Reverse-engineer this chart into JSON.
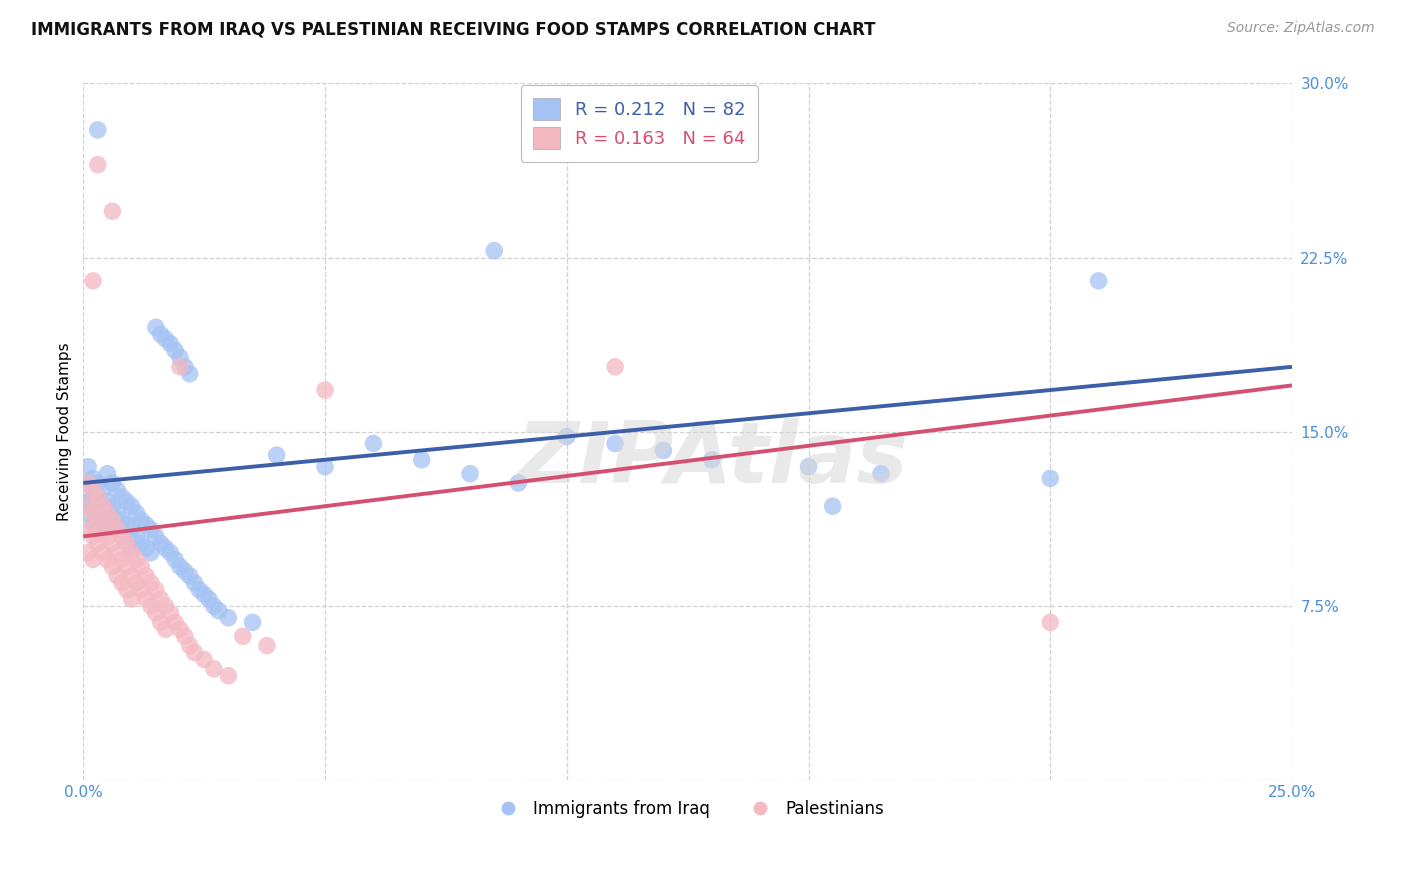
{
  "title": "IMMIGRANTS FROM IRAQ VS PALESTINIAN RECEIVING FOOD STAMPS CORRELATION CHART",
  "source": "Source: ZipAtlas.com",
  "ylabel": "Receiving Food Stamps",
  "xlim": [
    0.0,
    0.25
  ],
  "ylim": [
    0.0,
    0.3
  ],
  "xticks": [
    0.0,
    0.05,
    0.1,
    0.15,
    0.2,
    0.25
  ],
  "yticks": [
    0.0,
    0.075,
    0.15,
    0.225,
    0.3
  ],
  "blue_R": 0.212,
  "blue_N": 82,
  "pink_R": 0.163,
  "pink_N": 64,
  "blue_scatter_color": "#a4c2f4",
  "pink_scatter_color": "#f4b8c1",
  "blue_line_color": "#3d5fa8",
  "pink_line_color": "#d45070",
  "tick_label_color": "#4a90d9",
  "legend_label_blue": "Immigrants from Iraq",
  "legend_label_pink": "Palestinians",
  "blue_line_start_y": 0.128,
  "blue_line_end_y": 0.178,
  "pink_line_start_y": 0.105,
  "pink_line_end_y": 0.17,
  "watermark": "ZIPAtlas",
  "blue_points": [
    [
      0.001,
      0.128
    ],
    [
      0.001,
      0.135
    ],
    [
      0.001,
      0.12
    ],
    [
      0.001,
      0.115
    ],
    [
      0.002,
      0.13
    ],
    [
      0.002,
      0.125
    ],
    [
      0.002,
      0.118
    ],
    [
      0.002,
      0.11
    ],
    [
      0.002,
      0.122
    ],
    [
      0.003,
      0.128
    ],
    [
      0.003,
      0.115
    ],
    [
      0.003,
      0.122
    ],
    [
      0.003,
      0.108
    ],
    [
      0.003,
      0.28
    ],
    [
      0.004,
      0.125
    ],
    [
      0.004,
      0.118
    ],
    [
      0.004,
      0.112
    ],
    [
      0.005,
      0.132
    ],
    [
      0.005,
      0.12
    ],
    [
      0.005,
      0.115
    ],
    [
      0.006,
      0.128
    ],
    [
      0.006,
      0.118
    ],
    [
      0.006,
      0.11
    ],
    [
      0.007,
      0.125
    ],
    [
      0.007,
      0.115
    ],
    [
      0.007,
      0.108
    ],
    [
      0.008,
      0.122
    ],
    [
      0.008,
      0.112
    ],
    [
      0.008,
      0.105
    ],
    [
      0.009,
      0.12
    ],
    [
      0.009,
      0.11
    ],
    [
      0.01,
      0.118
    ],
    [
      0.01,
      0.108
    ],
    [
      0.01,
      0.1
    ],
    [
      0.011,
      0.115
    ],
    [
      0.011,
      0.105
    ],
    [
      0.012,
      0.112
    ],
    [
      0.012,
      0.102
    ],
    [
      0.013,
      0.11
    ],
    [
      0.013,
      0.1
    ],
    [
      0.014,
      0.108
    ],
    [
      0.014,
      0.098
    ],
    [
      0.015,
      0.105
    ],
    [
      0.015,
      0.195
    ],
    [
      0.016,
      0.102
    ],
    [
      0.016,
      0.192
    ],
    [
      0.017,
      0.1
    ],
    [
      0.017,
      0.19
    ],
    [
      0.018,
      0.098
    ],
    [
      0.018,
      0.188
    ],
    [
      0.019,
      0.095
    ],
    [
      0.019,
      0.185
    ],
    [
      0.02,
      0.092
    ],
    [
      0.02,
      0.182
    ],
    [
      0.021,
      0.09
    ],
    [
      0.021,
      0.178
    ],
    [
      0.022,
      0.088
    ],
    [
      0.022,
      0.175
    ],
    [
      0.023,
      0.085
    ],
    [
      0.024,
      0.082
    ],
    [
      0.025,
      0.08
    ],
    [
      0.026,
      0.078
    ],
    [
      0.027,
      0.075
    ],
    [
      0.028,
      0.073
    ],
    [
      0.03,
      0.07
    ],
    [
      0.035,
      0.068
    ],
    [
      0.04,
      0.14
    ],
    [
      0.05,
      0.135
    ],
    [
      0.06,
      0.145
    ],
    [
      0.07,
      0.138
    ],
    [
      0.08,
      0.132
    ],
    [
      0.09,
      0.128
    ],
    [
      0.1,
      0.148
    ],
    [
      0.11,
      0.145
    ],
    [
      0.12,
      0.142
    ],
    [
      0.13,
      0.138
    ],
    [
      0.15,
      0.135
    ],
    [
      0.165,
      0.132
    ],
    [
      0.2,
      0.13
    ],
    [
      0.21,
      0.215
    ],
    [
      0.085,
      0.228
    ],
    [
      0.155,
      0.118
    ]
  ],
  "pink_points": [
    [
      0.001,
      0.128
    ],
    [
      0.001,
      0.118
    ],
    [
      0.001,
      0.108
    ],
    [
      0.001,
      0.098
    ],
    [
      0.002,
      0.125
    ],
    [
      0.002,
      0.115
    ],
    [
      0.002,
      0.105
    ],
    [
      0.002,
      0.095
    ],
    [
      0.002,
      0.215
    ],
    [
      0.003,
      0.122
    ],
    [
      0.003,
      0.112
    ],
    [
      0.003,
      0.102
    ],
    [
      0.003,
      0.265
    ],
    [
      0.004,
      0.118
    ],
    [
      0.004,
      0.108
    ],
    [
      0.004,
      0.098
    ],
    [
      0.005,
      0.115
    ],
    [
      0.005,
      0.105
    ],
    [
      0.005,
      0.095
    ],
    [
      0.006,
      0.245
    ],
    [
      0.006,
      0.112
    ],
    [
      0.006,
      0.102
    ],
    [
      0.006,
      0.092
    ],
    [
      0.007,
      0.108
    ],
    [
      0.007,
      0.098
    ],
    [
      0.007,
      0.088
    ],
    [
      0.008,
      0.105
    ],
    [
      0.008,
      0.095
    ],
    [
      0.008,
      0.085
    ],
    [
      0.009,
      0.102
    ],
    [
      0.009,
      0.092
    ],
    [
      0.009,
      0.082
    ],
    [
      0.01,
      0.098
    ],
    [
      0.01,
      0.088
    ],
    [
      0.01,
      0.078
    ],
    [
      0.011,
      0.095
    ],
    [
      0.011,
      0.085
    ],
    [
      0.012,
      0.092
    ],
    [
      0.012,
      0.082
    ],
    [
      0.013,
      0.088
    ],
    [
      0.013,
      0.078
    ],
    [
      0.014,
      0.085
    ],
    [
      0.014,
      0.075
    ],
    [
      0.015,
      0.082
    ],
    [
      0.015,
      0.072
    ],
    [
      0.016,
      0.078
    ],
    [
      0.016,
      0.068
    ],
    [
      0.017,
      0.075
    ],
    [
      0.017,
      0.065
    ],
    [
      0.018,
      0.072
    ],
    [
      0.019,
      0.068
    ],
    [
      0.02,
      0.065
    ],
    [
      0.021,
      0.062
    ],
    [
      0.022,
      0.058
    ],
    [
      0.023,
      0.055
    ],
    [
      0.025,
      0.052
    ],
    [
      0.027,
      0.048
    ],
    [
      0.03,
      0.045
    ],
    [
      0.033,
      0.062
    ],
    [
      0.038,
      0.058
    ],
    [
      0.05,
      0.168
    ],
    [
      0.11,
      0.178
    ],
    [
      0.2,
      0.068
    ],
    [
      0.02,
      0.178
    ]
  ]
}
